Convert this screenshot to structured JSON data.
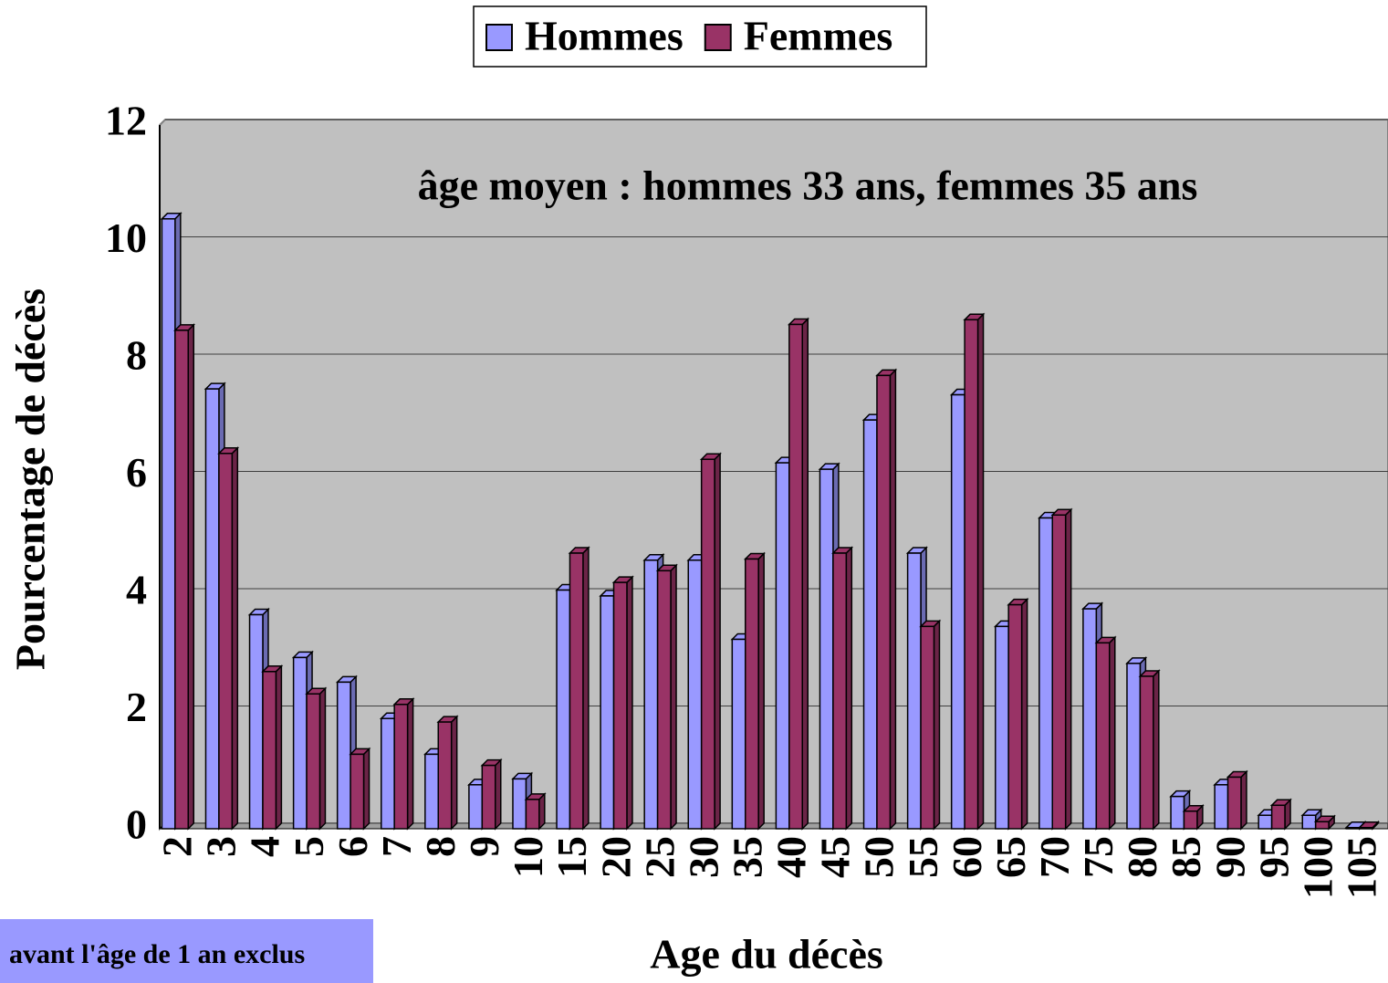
{
  "chart_data": {
    "type": "bar",
    "annotation": "âge moyen : hommes 33 ans, femmes 35 ans",
    "note": "avant l'âge de 1 an exclus",
    "x_label": "Age du décès",
    "y_label": "Pourcentage de décès",
    "categories": [
      "2",
      "3",
      "4",
      "5",
      "6",
      "7",
      "8",
      "9",
      "10",
      "15",
      "20",
      "25",
      "30",
      "35",
      "40",
      "45",
      "50",
      "55",
      "60",
      "65",
      "70",
      "75",
      "80",
      "85",
      "90",
      "95",
      "100",
      "105"
    ],
    "series": [
      {
        "name": "Hommes",
        "color": "#9999ff",
        "values": [
          10.4,
          7.5,
          3.65,
          2.92,
          2.5,
          1.88,
          1.27,
          0.75,
          0.85,
          4.07,
          3.97,
          4.58,
          4.58,
          3.23,
          6.24,
          6.13,
          6.97,
          4.7,
          7.4,
          3.45,
          5.3,
          3.75,
          2.82,
          0.55,
          0.75,
          0.23,
          0.23,
          0.02
        ]
      },
      {
        "name": "Femmes",
        "color": "#993366",
        "values": [
          8.5,
          6.4,
          2.68,
          2.3,
          1.27,
          2.12,
          1.82,
          1.08,
          0.5,
          4.7,
          4.2,
          4.4,
          6.3,
          4.6,
          8.6,
          4.7,
          7.73,
          3.45,
          8.68,
          3.82,
          5.35,
          3.17,
          2.6,
          0.3,
          0.88,
          0.4,
          0.12,
          0.02
        ]
      }
    ],
    "ylim": [
      0,
      12
    ],
    "yticks": [
      0,
      2,
      4,
      6,
      8,
      10,
      12
    ],
    "grid": true,
    "legend": "top"
  }
}
